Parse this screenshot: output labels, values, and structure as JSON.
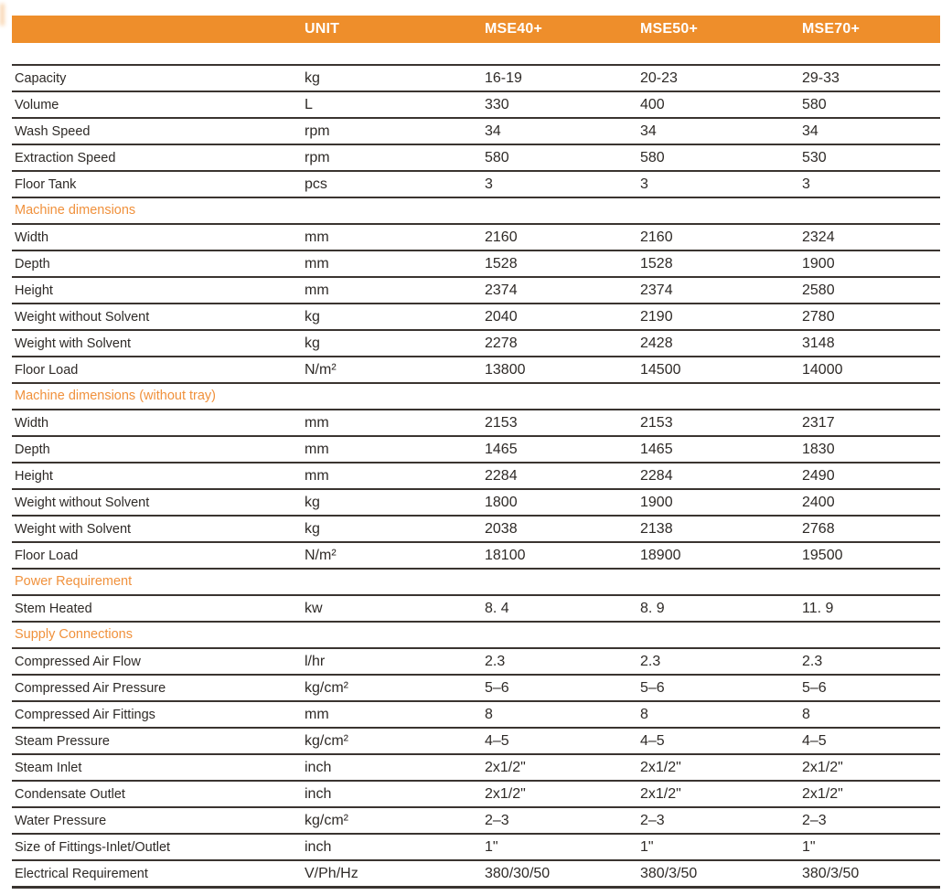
{
  "colors": {
    "accent": "#ee8e2b",
    "section_text": "#f0913c",
    "body_text": "#2e2a27",
    "rule_line": "#3a3430",
    "header_text": "#ffffff"
  },
  "header": {
    "columns": [
      "",
      "UNIT",
      "MSE40+",
      "MSE50+",
      "MSE70+"
    ]
  },
  "table": {
    "rows": [
      {
        "type": "data",
        "label": "Capacity",
        "unit": "kg",
        "values": [
          "16-19",
          "20-23",
          "29-33"
        ]
      },
      {
        "type": "data",
        "label": "Volume",
        "unit": "L",
        "values": [
          "330",
          "400",
          "580"
        ]
      },
      {
        "type": "data",
        "label": "Wash Speed",
        "unit": "rpm",
        "values": [
          "34",
          "34",
          "34"
        ]
      },
      {
        "type": "data",
        "label": "Extraction Speed",
        "unit": "rpm",
        "values": [
          "580",
          "580",
          "530"
        ]
      },
      {
        "type": "data",
        "label": "Floor Tank",
        "unit": "pcs",
        "values": [
          "3",
          "3",
          "3"
        ]
      },
      {
        "type": "section",
        "label": "Machine dimensions"
      },
      {
        "type": "data",
        "label": "Width",
        "unit": "mm",
        "values": [
          "2160",
          "2160",
          "2324"
        ]
      },
      {
        "type": "data",
        "label": "Depth",
        "unit": "mm",
        "values": [
          "1528",
          "1528",
          "1900"
        ]
      },
      {
        "type": "data",
        "label": "Height",
        "unit": "mm",
        "values": [
          "2374",
          "2374",
          "2580"
        ]
      },
      {
        "type": "data",
        "label": "Weight without Solvent",
        "unit": "kg",
        "values": [
          "2040",
          "2190",
          "2780"
        ]
      },
      {
        "type": "data",
        "label": "Weight with Solvent",
        "unit": "kg",
        "values": [
          "2278",
          "2428",
          "3148"
        ]
      },
      {
        "type": "data",
        "label": "Floor Load",
        "unit": "N/m²",
        "values": [
          "13800",
          "14500",
          "14000"
        ]
      },
      {
        "type": "section",
        "label": "Machine dimensions (without tray)"
      },
      {
        "type": "data",
        "label": "Width",
        "unit": "mm",
        "values": [
          "2153",
          "2153",
          "2317"
        ]
      },
      {
        "type": "data",
        "label": "Depth",
        "unit": "mm",
        "values": [
          "1465",
          "1465",
          "1830"
        ]
      },
      {
        "type": "data",
        "label": "Height",
        "unit": "mm",
        "values": [
          "2284",
          "2284",
          "2490"
        ]
      },
      {
        "type": "data",
        "label": "Weight without Solvent",
        "unit": "kg",
        "values": [
          "1800",
          "1900",
          "2400"
        ]
      },
      {
        "type": "data",
        "label": "Weight with Solvent",
        "unit": "kg",
        "values": [
          "2038",
          "2138",
          "2768"
        ]
      },
      {
        "type": "data",
        "label": "Floor Load",
        "unit": "N/m²",
        "values": [
          "18100",
          "18900",
          "19500"
        ]
      },
      {
        "type": "section",
        "label": "Power Requirement"
      },
      {
        "type": "data",
        "label": "Stem Heated",
        "unit": "kw",
        "values": [
          "8. 4",
          "8. 9",
          "11. 9"
        ]
      },
      {
        "type": "section",
        "label": "Supply Connections"
      },
      {
        "type": "data",
        "label": "Compressed Air Flow",
        "unit": "l/hr",
        "values": [
          "2.3",
          "2.3",
          "2.3"
        ]
      },
      {
        "type": "data",
        "label": "Compressed Air Pressure",
        "unit": "kg/cm²",
        "values": [
          "5–6",
          "5–6",
          "5–6"
        ]
      },
      {
        "type": "data",
        "label": "Compressed Air Fittings",
        "unit": "mm",
        "values": [
          "8",
          "8",
          "8"
        ]
      },
      {
        "type": "data",
        "label": "Steam Pressure",
        "unit": "kg/cm²",
        "values": [
          "4–5",
          "4–5",
          "4–5"
        ]
      },
      {
        "type": "data",
        "label": "Steam Inlet",
        "unit": "inch",
        "values": [
          "2x1/2\"",
          "2x1/2\"",
          "2x1/2\""
        ]
      },
      {
        "type": "data",
        "label": "Condensate Outlet",
        "unit": "inch",
        "values": [
          "2x1/2\"",
          "2x1/2\"",
          "2x1/2\""
        ]
      },
      {
        "type": "data",
        "label": "Water Pressure",
        "unit": "kg/cm²",
        "values": [
          "2–3",
          "2–3",
          "2–3"
        ]
      },
      {
        "type": "data",
        "label": "Size of Fittings-Inlet/Outlet",
        "unit": "inch",
        "values": [
          "1\"",
          "1\"",
          "1\""
        ]
      },
      {
        "type": "data",
        "label": "Electrical Requirement",
        "unit": "V/Ph/Hz",
        "values": [
          "380/30/50",
          "380/3/50",
          "380/3/50"
        ]
      }
    ]
  }
}
